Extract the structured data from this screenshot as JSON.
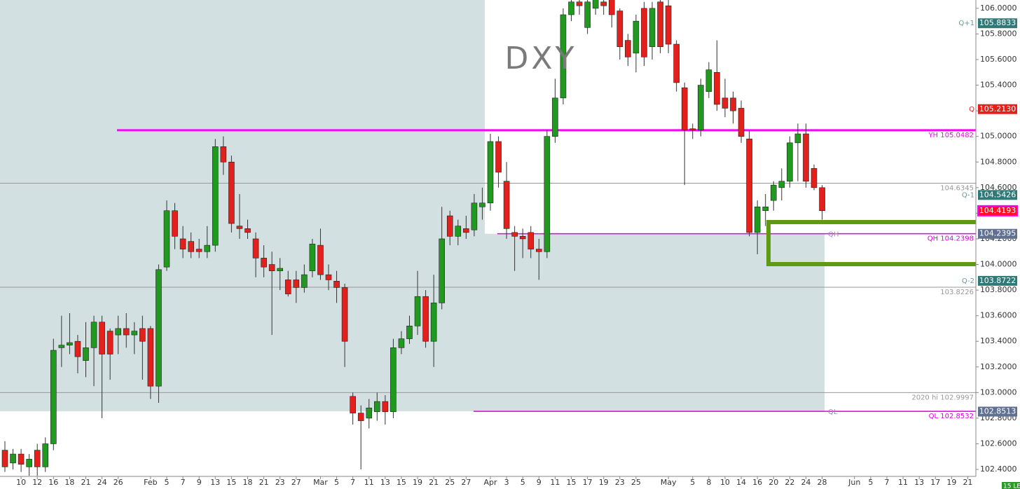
{
  "chart_data": {
    "type": "candlestick",
    "title": "DXY",
    "categories": [
      null,
      null,
      "10",
      null,
      "12",
      null,
      "16",
      null,
      "18",
      null,
      "21",
      null,
      "24",
      null,
      "26",
      null,
      null,
      null,
      "Feb",
      null,
      "5",
      null,
      "7",
      null,
      "9",
      null,
      "13",
      null,
      "15",
      null,
      "18",
      null,
      "21",
      null,
      "23",
      null,
      "27",
      null,
      null,
      "Mar",
      null,
      "5",
      null,
      "7",
      null,
      "11",
      null,
      "13",
      null,
      "15",
      null,
      "19",
      null,
      "21",
      null,
      "25",
      null,
      "27",
      null,
      null,
      "Apr",
      null,
      "3",
      null,
      "5",
      null,
      "9",
      null,
      "11",
      null,
      "15",
      null,
      "17",
      null,
      "19",
      null,
      "23",
      null,
      "25",
      null,
      null,
      null,
      "May",
      null,
      null,
      "5",
      null,
      "8",
      null,
      "10",
      null,
      "14",
      null,
      "16",
      null,
      "20",
      null,
      "22",
      null,
      "24",
      null,
      "28",
      null,
      null,
      null,
      "Jun",
      null,
      "5",
      null,
      "7",
      null,
      "11",
      null,
      "13",
      null,
      "17",
      null,
      "19",
      null,
      "21"
    ],
    "open": [
      102.55,
      102.45,
      102.52,
      102.42,
      102.55,
      102.42,
      102.6,
      103.35,
      103.37,
      103.4,
      103.25,
      103.35,
      103.55,
      103.48,
      103.45,
      103.5,
      103.45,
      103.5,
      103.5,
      103.05,
      103.98,
      104.42,
      104.2,
      104.18,
      104.12,
      104.1,
      104.15,
      104.92,
      104.8,
      104.3,
      104.28,
      104.2,
      104.05,
      104.0,
      103.95,
      103.88,
      103.88,
      103.82,
      103.95,
      104.15,
      103.92,
      103.87,
      103.82,
      102.97,
      102.84,
      102.8,
      102.85,
      102.93,
      102.85,
      103.35,
      103.42,
      103.52,
      103.75,
      103.4,
      103.7,
      104.38,
      104.22,
      104.28,
      104.27,
      104.45,
      104.48,
      104.96,
      104.65,
      104.25,
      104.22,
      104.25,
      104.12,
      104.1,
      105.0,
      105.3,
      105.95,
      106.05,
      105.85,
      106.0,
      106.05,
      106.08,
      105.98,
      105.75,
      105.65,
      106.0,
      105.7,
      106.05,
      106.02,
      105.72,
      105.38,
      105.06,
      105.05,
      105.35,
      105.5,
      105.3,
      105.3,
      105.22,
      104.98,
      104.25,
      104.42,
      104.5,
      104.6,
      104.65,
      104.95,
      105.02,
      104.75,
      104.6,
      null,
      null,
      null,
      null,
      null,
      null,
      null,
      null,
      null,
      null,
      null,
      null,
      null,
      null,
      null,
      null,
      null,
      null
    ],
    "high": [
      102.62,
      102.56,
      102.56,
      102.52,
      102.6,
      102.65,
      103.42,
      103.6,
      103.62,
      103.45,
      103.55,
      103.6,
      103.6,
      103.5,
      103.6,
      103.62,
      103.55,
      103.6,
      103.52,
      104.0,
      104.5,
      104.48,
      104.3,
      104.25,
      104.2,
      104.3,
      104.98,
      105.0,
      104.85,
      104.55,
      104.35,
      104.25,
      104.15,
      104.1,
      104.05,
      103.95,
      103.95,
      104.0,
      104.2,
      104.28,
      104.0,
      103.95,
      103.85,
      103.0,
      102.9,
      102.95,
      103.0,
      102.98,
      103.42,
      103.48,
      103.6,
      103.95,
      103.8,
      103.92,
      104.45,
      104.42,
      104.35,
      104.38,
      104.55,
      104.6,
      105.02,
      105.0,
      104.8,
      104.3,
      104.28,
      104.3,
      104.2,
      105.05,
      105.45,
      106.0,
      106.1,
      106.1,
      106.1,
      106.12,
      106.1,
      106.12,
      106.0,
      105.8,
      105.95,
      106.05,
      106.05,
      106.1,
      106.08,
      105.75,
      105.42,
      105.1,
      105.45,
      105.58,
      105.75,
      105.45,
      105.35,
      105.28,
      105.05,
      104.5,
      104.55,
      104.65,
      104.75,
      105.0,
      105.1,
      105.1,
      104.78,
      104.62,
      null,
      null,
      null,
      null,
      null,
      null,
      null,
      null,
      null,
      null,
      null,
      null,
      null,
      null,
      null,
      null,
      null,
      null
    ],
    "low": [
      102.38,
      102.4,
      102.38,
      102.35,
      102.35,
      102.38,
      102.55,
      103.2,
      103.3,
      103.15,
      103.12,
      103.05,
      102.8,
      103.1,
      103.3,
      103.35,
      103.3,
      103.1,
      102.95,
      102.92,
      103.95,
      104.12,
      104.05,
      104.05,
      104.05,
      104.05,
      104.1,
      104.7,
      104.25,
      104.2,
      104.2,
      103.9,
      103.9,
      103.45,
      103.8,
      103.75,
      103.7,
      103.78,
      103.9,
      103.88,
      103.8,
      103.7,
      103.2,
      102.75,
      102.4,
      102.72,
      102.78,
      102.75,
      102.8,
      103.3,
      103.38,
      103.45,
      103.35,
      103.2,
      103.65,
      104.15,
      104.15,
      104.2,
      104.22,
      104.35,
      104.42,
      104.6,
      104.2,
      103.95,
      104.05,
      104.05,
      103.88,
      104.05,
      104.95,
      105.25,
      105.9,
      105.95,
      105.8,
      105.95,
      105.95,
      105.85,
      105.6,
      105.55,
      105.5,
      105.55,
      105.6,
      105.65,
      105.65,
      105.35,
      104.62,
      104.98,
      105.0,
      105.3,
      105.2,
      105.15,
      105.1,
      104.95,
      104.22,
      104.08,
      104.3,
      104.42,
      104.5,
      104.6,
      104.65,
      104.6,
      104.58,
      104.35,
      null,
      null,
      null,
      null,
      null,
      null,
      null,
      null,
      null,
      null,
      null,
      null,
      null,
      null,
      null,
      null,
      null,
      null
    ],
    "close": [
      102.42,
      102.52,
      102.44,
      102.48,
      102.42,
      102.6,
      103.33,
      103.37,
      103.39,
      103.28,
      103.35,
      103.55,
      103.3,
      103.3,
      103.5,
      103.45,
      103.48,
      103.4,
      103.05,
      103.96,
      104.42,
      104.22,
      104.12,
      104.1,
      104.1,
      104.15,
      104.92,
      104.8,
      104.32,
      104.28,
      104.25,
      104.05,
      103.98,
      103.95,
      103.97,
      103.77,
      103.82,
      103.92,
      104.16,
      103.92,
      103.88,
      103.82,
      103.4,
      102.84,
      102.78,
      102.88,
      102.93,
      102.85,
      103.35,
      103.42,
      103.52,
      103.75,
      103.4,
      103.7,
      104.2,
      104.22,
      104.3,
      104.25,
      104.48,
      104.48,
      104.96,
      104.72,
      104.28,
      104.22,
      104.2,
      104.12,
      104.1,
      105.0,
      105.3,
      105.95,
      106.05,
      106.02,
      106.05,
      106.1,
      106.02,
      105.95,
      105.7,
      105.62,
      105.9,
      105.62,
      106.0,
      105.7,
      105.72,
      105.42,
      105.05,
      105.05,
      105.4,
      105.52,
      105.25,
      105.22,
      105.2,
      105.0,
      104.25,
      104.45,
      104.45,
      104.62,
      104.65,
      104.95,
      105.02,
      104.65,
      104.6,
      104.42,
      null,
      null,
      null,
      null,
      null,
      null,
      null,
      null,
      null,
      null,
      null,
      null,
      null,
      null,
      null,
      null,
      null,
      null
    ],
    "up_color": "#1f9a1f",
    "down_color": "#e3201b",
    "ylim": [
      102.247,
      106.065
    ],
    "yticks": [
      {
        "value": 102.4,
        "label": "102.4000"
      },
      {
        "value": 102.6,
        "label": "102.6000"
      },
      {
        "value": 102.8,
        "label": "102.8000"
      },
      {
        "value": 103,
        "label": "103.0000"
      },
      {
        "value": 103.2,
        "label": "103.2000"
      },
      {
        "value": 103.4,
        "label": "103.4000"
      },
      {
        "value": 103.6,
        "label": "103.6000"
      },
      {
        "value": 103.8,
        "label": "103.8000"
      },
      {
        "value": 104,
        "label": "104.0000"
      },
      {
        "value": 104.2,
        "label": "104.2000"
      },
      {
        "value": 104.4,
        "label": "104.4000"
      },
      {
        "value": 104.6,
        "label": "104.6000"
      },
      {
        "value": 104.8,
        "label": "104.8000"
      },
      {
        "value": 105,
        "label": "105.0000"
      },
      {
        "value": 105.2,
        "label": "105.2000"
      },
      {
        "value": 105.4,
        "label": "105.4000"
      },
      {
        "value": 105.6,
        "label": "105.6000"
      },
      {
        "value": 105.8,
        "label": "105.8000"
      },
      {
        "value": 106,
        "label": "106.0000"
      }
    ],
    "levels": [
      {
        "name": "YH",
        "value": 105.0482,
        "color": "#ff00ff"
      },
      {
        "name": "QH",
        "value": 104.2398,
        "color": "#dd00dd"
      },
      {
        "name": "QL",
        "value": 102.8532,
        "color": "#dd00dd"
      },
      {
        "value": 104.6345,
        "color": "#999999"
      },
      {
        "value": 103.8226,
        "color": "#999999"
      },
      {
        "name": "2020 hi",
        "value": 102.9997,
        "color": "#999999"
      }
    ],
    "price_tags": [
      {
        "name": "Q+1",
        "value": 105.8833,
        "color": "#2f7a78"
      },
      {
        "name": "Q",
        "value": 105.213,
        "value_label": "105.2130",
        "color": "#e3201b"
      },
      {
        "name": "Q-1",
        "value": 104.5426,
        "color": "#2f7a78"
      },
      {
        "value": 104.4193,
        "color": "#ff1020"
      },
      {
        "name": "Q-2",
        "value": 103.8722,
        "color": "#2f7a78"
      },
      {
        "value": 104.2395,
        "color": "#5f7090"
      },
      {
        "value": 102.8513,
        "color": "#5f7090"
      }
    ],
    "corner_tag": "15 LE"
  }
}
